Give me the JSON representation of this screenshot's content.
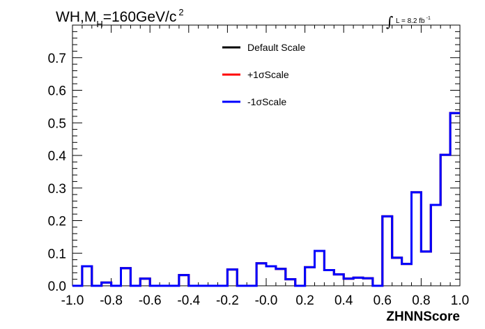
{
  "chart_data": {
    "type": "line",
    "title_main": "WH,M",
    "title_sub": "H",
    "title_rest": "=160GeV/c",
    "title_sup": "2",
    "lumi_label": "L = 8.2 fb",
    "lumi_sup": "-1",
    "xlabel": "ZHNNScore",
    "ylabel": "",
    "xlim": [
      -1.0,
      1.0
    ],
    "ylim": [
      0.0,
      0.8
    ],
    "x_ticks": [
      -1.0,
      -0.8,
      -0.6,
      -0.4,
      -0.2,
      0.0,
      0.2,
      0.4,
      0.6,
      0.8,
      1.0
    ],
    "x_tick_labels": [
      "-1.0",
      "-0.8",
      "-0.6",
      "-0.4",
      "-0.2",
      "-0.0",
      "0.2",
      "0.4",
      "0.6",
      "0.8",
      "1.0"
    ],
    "y_ticks": [
      0.0,
      0.1,
      0.2,
      0.3,
      0.4,
      0.5,
      0.6,
      0.7
    ],
    "y_tick_labels": [
      "0.0",
      "0.1",
      "0.2",
      "0.3",
      "0.4",
      "0.5",
      "0.6",
      "0.7"
    ],
    "grid": false,
    "legend_position": "top-center",
    "bin_edges": [
      -1.0,
      -0.95,
      -0.9,
      -0.85,
      -0.8,
      -0.75,
      -0.7,
      -0.65,
      -0.6,
      -0.55,
      -0.5,
      -0.45,
      -0.4,
      -0.35,
      -0.3,
      -0.25,
      -0.2,
      -0.15,
      -0.1,
      -0.05,
      0.0,
      0.05,
      0.1,
      0.15,
      0.2,
      0.25,
      0.3,
      0.35,
      0.4,
      0.45,
      0.5,
      0.55,
      0.6,
      0.65,
      0.7,
      0.75,
      0.8,
      0.85,
      0.9,
      0.95,
      1.0
    ],
    "series": [
      {
        "name": "Default Scale",
        "color": "#000000",
        "values": [
          0.0,
          0.06,
          0.0,
          0.01,
          0.0,
          0.054,
          0.0,
          0.022,
          0.0,
          0.0,
          0.0,
          0.033,
          0.0,
          0.0,
          0.0,
          0.0,
          0.05,
          0.0,
          0.0,
          0.069,
          0.06,
          0.052,
          0.02,
          0.0,
          0.057,
          0.107,
          0.048,
          0.035,
          0.022,
          0.025,
          0.023,
          0.0,
          0.213,
          0.086,
          0.067,
          0.287,
          0.105,
          0.248,
          0.402,
          0.53
        ]
      },
      {
        "name": "+1σScale",
        "color": "#ff0000",
        "values": [
          0.0,
          0.06,
          0.0,
          0.01,
          0.0,
          0.054,
          0.0,
          0.022,
          0.0,
          0.0,
          0.0,
          0.033,
          0.0,
          0.0,
          0.0,
          0.0,
          0.05,
          0.0,
          0.0,
          0.069,
          0.06,
          0.052,
          0.02,
          0.0,
          0.057,
          0.107,
          0.048,
          0.035,
          0.022,
          0.025,
          0.023,
          0.0,
          0.213,
          0.086,
          0.067,
          0.287,
          0.105,
          0.248,
          0.402,
          0.53
        ]
      },
      {
        "name": "-1σScale",
        "color": "#0000ff",
        "values": [
          0.0,
          0.06,
          0.0,
          0.01,
          0.0,
          0.054,
          0.0,
          0.022,
          0.0,
          0.0,
          0.0,
          0.033,
          0.0,
          0.0,
          0.0,
          0.0,
          0.05,
          0.0,
          0.0,
          0.069,
          0.06,
          0.052,
          0.02,
          0.0,
          0.057,
          0.107,
          0.048,
          0.035,
          0.022,
          0.025,
          0.023,
          0.0,
          0.213,
          0.086,
          0.067,
          0.287,
          0.105,
          0.248,
          0.402,
          0.53
        ]
      }
    ]
  }
}
